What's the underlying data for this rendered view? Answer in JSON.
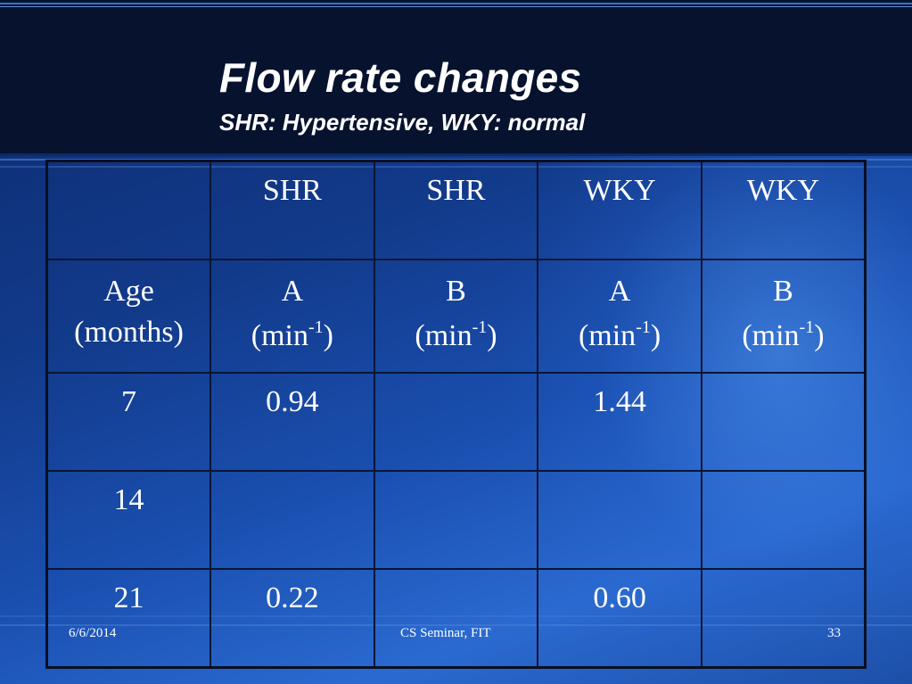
{
  "slide": {
    "title": "Flow rate changes",
    "subtitle": "SHR: Hypertensive, WKY: normal"
  },
  "table": {
    "group_headers": [
      "",
      "SHR",
      "SHR",
      "WKY",
      "WKY"
    ],
    "first_column_header": [
      "Age",
      "(months)"
    ],
    "param_headers": [
      {
        "name": "A",
        "unit": "(min",
        "exponent": "-1",
        "close": ")"
      },
      {
        "name": "B",
        "unit": "(min",
        "exponent": "-1",
        "close": ")"
      },
      {
        "name": "A",
        "unit": "(min",
        "exponent": "-1",
        "close": ")"
      },
      {
        "name": "B",
        "unit": "(min",
        "exponent": "-1",
        "close": ")"
      }
    ],
    "rows": [
      [
        "7",
        "0.94",
        "",
        "1.44",
        ""
      ],
      [
        "14",
        "",
        "",
        "",
        ""
      ],
      [
        "21",
        "0.22",
        "",
        "0.60",
        ""
      ]
    ]
  },
  "footer": {
    "date": "6/6/2014",
    "center": "CS Seminar, FIT",
    "page": "33"
  },
  "colors": {
    "header_band": "#06122e",
    "background": "#1a4fb0",
    "text": "#ffffff"
  }
}
